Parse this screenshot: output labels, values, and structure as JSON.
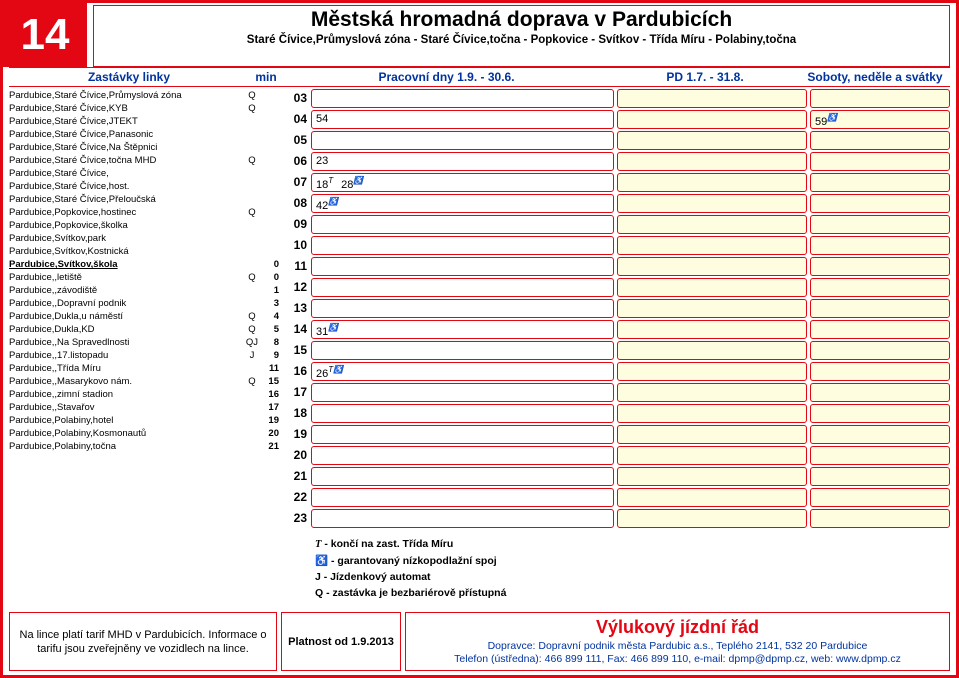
{
  "header": {
    "line_number": "14",
    "main_title": "Městská hromadná doprava v Pardubicích",
    "sub_title": "Staré Čívice,Průmyslová zóna - Staré Čívice,točna - Popkovice - Svítkov - Třída Míru - Polabiny,točna"
  },
  "col_headers": {
    "stops": "Zastávky linky",
    "min": "min",
    "work": "Pracovní dny 1.9. - 30.6.",
    "pd": "PD 1.7. - 31.8.",
    "wknd": "Soboty, neděle a svátky"
  },
  "stops": [
    {
      "name": "Pardubice,Staré Čívice,Průmyslová zóna",
      "q": "Q",
      "min": ""
    },
    {
      "name": "Pardubice,Staré Čívice,KYB",
      "q": "Q",
      "min": ""
    },
    {
      "name": "Pardubice,Staré Čívice,JTEKT",
      "q": "",
      "min": ""
    },
    {
      "name": "Pardubice,Staré Čívice,Panasonic",
      "q": "",
      "min": ""
    },
    {
      "name": "Pardubice,Staré Čívice,Na Štěpnici",
      "q": "",
      "min": ""
    },
    {
      "name": "Pardubice,Staré Čívice,točna MHD",
      "q": "Q",
      "min": ""
    },
    {
      "name": "Pardubice,Staré Čívice,",
      "q": "",
      "min": ""
    },
    {
      "name": "Pardubice,Staré Čívice,host.",
      "q": "",
      "min": ""
    },
    {
      "name": "Pardubice,Staré Čívice,Přeloučská",
      "q": "",
      "min": ""
    },
    {
      "name": "Pardubice,Popkovice,hostinec",
      "q": "Q",
      "min": ""
    },
    {
      "name": "Pardubice,Popkovice,školka",
      "q": "",
      "min": ""
    },
    {
      "name": "Pardubice,Svítkov,park",
      "q": "",
      "min": ""
    },
    {
      "name": "Pardubice,Svítkov,Kostnická",
      "q": "",
      "min": ""
    },
    {
      "name": "Pardubice,Svítkov,škola",
      "q": "",
      "min": "0",
      "bold": true
    },
    {
      "name": "Pardubice,,letiště",
      "q": "Q",
      "min": "0"
    },
    {
      "name": "Pardubice,,závodiště",
      "q": "",
      "min": "1"
    },
    {
      "name": "Pardubice,,Dopravní podnik",
      "q": "",
      "min": "3"
    },
    {
      "name": "Pardubice,Dukla,u náměstí",
      "q": "Q",
      "min": "4"
    },
    {
      "name": "Pardubice,Dukla,KD",
      "q": "Q",
      "min": "5"
    },
    {
      "name": "Pardubice,,Na Spravedlnosti",
      "q": "QJ",
      "min": "8"
    },
    {
      "name": "Pardubice,,17.listopadu",
      "q": "J",
      "min": "9"
    },
    {
      "name": "Pardubice,,Třída Míru",
      "q": "",
      "min": "11"
    },
    {
      "name": "Pardubice,,Masarykovo nám.",
      "q": "Q",
      "min": "15"
    },
    {
      "name": "Pardubice,,zimní stadion",
      "q": "",
      "min": "16"
    },
    {
      "name": "Pardubice,,Stavařov",
      "q": "",
      "min": "17"
    },
    {
      "name": "Pardubice,Polabiny,hotel",
      "q": "",
      "min": "19"
    },
    {
      "name": "Pardubice,Polabiny,Kosmonautů",
      "q": "",
      "min": "20"
    },
    {
      "name": "Pardubice,Polabiny,točna",
      "q": "",
      "min": "21"
    }
  ],
  "hours": [
    "03",
    "04",
    "05",
    "06",
    "07",
    "08",
    "09",
    "10",
    "11",
    "12",
    "13",
    "14",
    "15",
    "16",
    "17",
    "18",
    "19",
    "20",
    "21",
    "22",
    "23"
  ],
  "work_times": {
    "04": [
      {
        "m": "54"
      }
    ],
    "06": [
      {
        "m": "23"
      }
    ],
    "07": [
      {
        "m": "18",
        "sup": "T"
      },
      {
        "m": "28",
        "sup": "♿"
      }
    ],
    "08": [
      {
        "m": "42",
        "sup": "♿"
      }
    ],
    "14": [
      {
        "m": "31",
        "sup": "♿"
      }
    ],
    "16": [
      {
        "m": "26",
        "sup": "T♿"
      }
    ]
  },
  "wknd_times": {
    "04": [
      {
        "m": "59",
        "sup": "♿"
      }
    ]
  },
  "legend": [
    {
      "sym": "T",
      "text": " - končí na zast. Třída Míru",
      "italic": true
    },
    {
      "sym": "♿",
      "text": " - garantovaný nízkopodlažní spoj"
    },
    {
      "sym": "J",
      "text": " - Jízdenkový automat"
    },
    {
      "sym": "Q",
      "text": " - zastávka je bezbariérově přístupná"
    }
  ],
  "footer": {
    "tarif": "Na lince platí tarif MHD v Pardubicích. Informace o tarifu jsou zveřejněny ve vozidlech na lince.",
    "valid": "Platnost od 1.9.2013",
    "red_title": "Výlukový jízdní řád",
    "operator": "Dopravce: Dopravní podnik města Pardubic a.s., Teplého 2141, 532 20 Pardubice",
    "contact": "Telefon (ústředna): 466 899 111, Fax: 466 899 110, e-mail: dpmp@dpmp.cz, web: www.dpmp.cz"
  },
  "colors": {
    "red": "#e30613",
    "blue": "#0033a0",
    "yellow_bg": "#fffde0"
  }
}
